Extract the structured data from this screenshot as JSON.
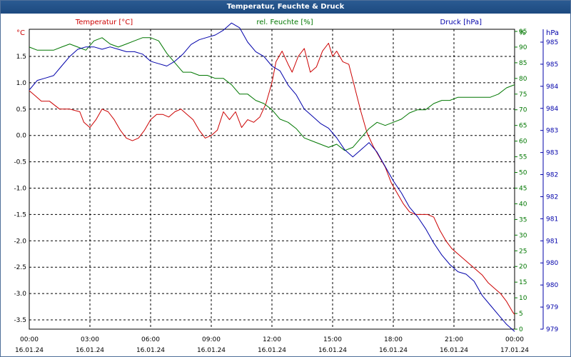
{
  "window": {
    "title": "Temperatur, Feuchte & Druck"
  },
  "colors": {
    "temperature": "#cc0000",
    "humidity": "#007700",
    "pressure": "#0000aa",
    "grid": "#000000",
    "background": "#ffffff"
  },
  "chart_data": {
    "type": "line",
    "grid": true,
    "x_ticks": [
      {
        "time": "00:00",
        "date": "16.01.24"
      },
      {
        "time": "03:00",
        "date": "16.01.24"
      },
      {
        "time": "06:00",
        "date": "16.01.24"
      },
      {
        "time": "09:00",
        "date": "16.01.24"
      },
      {
        "time": "12:00",
        "date": "16.01.24"
      },
      {
        "time": "15:00",
        "date": "16.01.24"
      },
      {
        "time": "18:00",
        "date": "16.01.24"
      },
      {
        "time": "21:00",
        "date": "16.01.24"
      },
      {
        "time": "00:00",
        "date": "17.01.24"
      }
    ],
    "axes": {
      "temperature": {
        "unit": "°C",
        "ylim": [
          -3.5,
          1.5
        ],
        "ticks": [
          "1.5",
          "1.0",
          "0.5",
          "0.0",
          "-0.5",
          "-1.0",
          "-1.5",
          "-2.0",
          "-2.5",
          "-3.0",
          "-3.5"
        ]
      },
      "humidity": {
        "unit": "%",
        "ylim": [
          0,
          95
        ],
        "ticks": [
          "95",
          "90",
          "85",
          "80",
          "75",
          "70",
          "65",
          "60",
          "55",
          "50",
          "45",
          "40",
          "35",
          "30",
          "25",
          "20",
          "15",
          "10",
          "5",
          "0"
        ]
      },
      "pressure": {
        "unit": "hPa",
        "ylim": [
          979,
          985
        ],
        "ticks": [
          "985",
          "985",
          "984",
          "984",
          "983",
          "983",
          "982",
          "982",
          "981",
          "981",
          "980",
          "980",
          "979",
          "979"
        ]
      }
    },
    "series": [
      {
        "name": "Temperatur [°C]",
        "axis": "temperature",
        "x": [
          0.0,
          0.3,
          0.6,
          1.0,
          1.5,
          2.0,
          2.5,
          2.7,
          3.0,
          3.3,
          3.6,
          3.9,
          4.2,
          4.5,
          4.8,
          5.1,
          5.4,
          5.7,
          6.0,
          6.3,
          6.6,
          6.9,
          7.2,
          7.5,
          7.8,
          8.1,
          8.4,
          8.7,
          9.0,
          9.3,
          9.6,
          9.9,
          10.2,
          10.5,
          10.8,
          11.1,
          11.4,
          11.7,
          12.0,
          12.2,
          12.5,
          12.8,
          13.0,
          13.3,
          13.6,
          13.9,
          14.2,
          14.5,
          14.8,
          15.0,
          15.2,
          15.5,
          15.8,
          16.1,
          16.4,
          16.7,
          17.0,
          17.3,
          17.6,
          17.9,
          18.2,
          18.5,
          18.8,
          19.1,
          19.4,
          19.7,
          20.0,
          20.3,
          20.6,
          20.9,
          21.2,
          21.5,
          21.8,
          22.1,
          22.4,
          22.7,
          23.0,
          23.3,
          23.6,
          23.9,
          24.0
        ],
        "y": [
          0.85,
          0.75,
          0.65,
          0.65,
          0.5,
          0.5,
          0.45,
          0.25,
          0.15,
          0.3,
          0.5,
          0.45,
          0.3,
          0.1,
          -0.05,
          -0.1,
          -0.05,
          0.1,
          0.3,
          0.4,
          0.4,
          0.35,
          0.45,
          0.5,
          0.4,
          0.3,
          0.1,
          -0.05,
          0.0,
          0.1,
          0.45,
          0.3,
          0.45,
          0.15,
          0.3,
          0.25,
          0.35,
          0.6,
          1.0,
          1.4,
          1.6,
          1.35,
          1.2,
          1.5,
          1.65,
          1.2,
          1.3,
          1.6,
          1.75,
          1.5,
          1.6,
          1.4,
          1.35,
          0.9,
          0.45,
          0.05,
          -0.2,
          -0.4,
          -0.6,
          -0.9,
          -1.1,
          -1.3,
          -1.45,
          -1.5,
          -1.5,
          -1.5,
          -1.55,
          -1.8,
          -2.0,
          -2.15,
          -2.25,
          -2.35,
          -2.45,
          -2.55,
          -2.65,
          -2.8,
          -2.9,
          -3.0,
          -3.15,
          -3.35,
          -3.4
        ]
      },
      {
        "name": "rel. Feuchte [%]",
        "axis": "humidity",
        "x": [
          0.0,
          0.4,
          0.8,
          1.2,
          1.6,
          2.0,
          2.4,
          2.8,
          3.2,
          3.6,
          4.0,
          4.4,
          4.8,
          5.2,
          5.6,
          6.0,
          6.4,
          6.8,
          7.2,
          7.6,
          8.0,
          8.4,
          8.8,
          9.2,
          9.6,
          10.0,
          10.4,
          10.8,
          11.2,
          11.6,
          12.0,
          12.4,
          12.8,
          13.2,
          13.6,
          14.0,
          14.4,
          14.8,
          15.2,
          15.6,
          16.0,
          16.4,
          16.8,
          17.2,
          17.6,
          18.0,
          18.4,
          18.8,
          19.2,
          19.6,
          20.0,
          20.4,
          20.8,
          21.2,
          21.6,
          22.0,
          22.4,
          22.8,
          23.2,
          23.6,
          24.0
        ],
        "y": [
          90,
          89,
          89,
          89,
          90,
          91,
          90,
          89,
          92,
          93,
          91,
          90,
          91,
          92,
          93,
          93,
          92,
          88,
          85,
          82,
          82,
          81,
          81,
          80,
          80,
          78,
          75,
          75,
          73,
          72,
          70,
          67,
          66,
          64,
          61,
          60,
          59,
          58,
          59,
          57,
          58,
          61,
          64,
          66,
          65,
          66,
          67,
          69,
          70,
          70,
          72,
          73,
          73,
          74,
          74,
          74,
          74,
          74,
          75,
          77,
          78
        ]
      },
      {
        "name": "Druck [hPa]",
        "axis": "pressure",
        "x": [
          0.0,
          0.4,
          0.8,
          1.2,
          1.6,
          2.0,
          2.4,
          2.8,
          3.2,
          3.6,
          4.0,
          4.4,
          4.8,
          5.2,
          5.6,
          6.0,
          6.4,
          6.8,
          7.2,
          7.6,
          8.0,
          8.4,
          8.8,
          9.2,
          9.6,
          10.0,
          10.4,
          10.8,
          11.2,
          11.6,
          12.0,
          12.4,
          12.8,
          13.2,
          13.6,
          14.0,
          14.4,
          14.8,
          15.2,
          15.6,
          16.0,
          16.4,
          16.8,
          17.2,
          17.6,
          18.0,
          18.4,
          18.8,
          19.2,
          19.6,
          20.0,
          20.4,
          20.8,
          21.2,
          21.6,
          22.0,
          22.4,
          22.8,
          23.2,
          23.6,
          24.0
        ],
        "y": [
          984.0,
          984.2,
          984.25,
          984.3,
          984.5,
          984.7,
          984.85,
          984.9,
          984.9,
          984.85,
          984.9,
          984.85,
          984.8,
          984.8,
          984.75,
          984.6,
          984.55,
          984.5,
          984.6,
          984.75,
          984.95,
          985.05,
          985.1,
          985.15,
          985.25,
          985.4,
          985.3,
          985.0,
          984.8,
          984.7,
          984.5,
          984.4,
          984.1,
          983.9,
          983.6,
          983.45,
          983.3,
          983.2,
          983.0,
          982.75,
          982.6,
          982.75,
          982.9,
          982.7,
          982.4,
          982.1,
          981.85,
          981.55,
          981.35,
          981.1,
          980.8,
          980.55,
          980.35,
          980.2,
          980.15,
          980.0,
          979.7,
          979.5,
          979.3,
          979.1,
          978.95
        ]
      }
    ]
  }
}
